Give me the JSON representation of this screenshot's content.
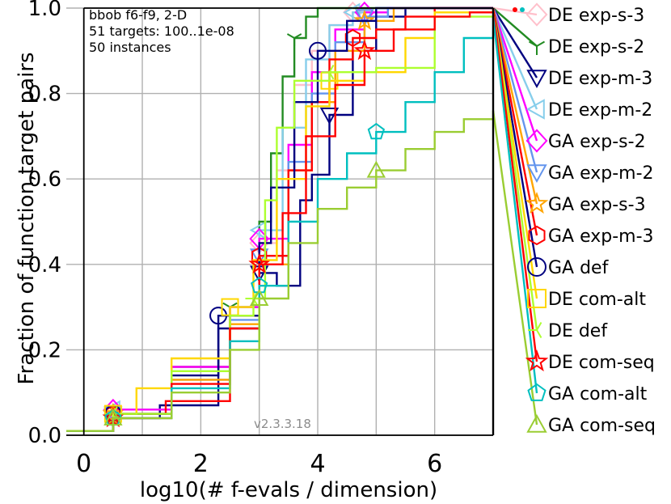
{
  "chart_data": {
    "type": "line",
    "title": "",
    "xlabel": "log10(# f-evals / dimension)",
    "ylabel": "Fraction of function,target pairs",
    "xlim": [
      -0.3,
      7.0
    ],
    "ylim": [
      0.0,
      1.0
    ],
    "xticks": [
      0,
      2,
      4,
      6
    ],
    "xtick_labels": [
      "0",
      "2",
      "4",
      "6"
    ],
    "yticks": [
      0.0,
      0.2,
      0.4,
      0.6,
      0.8,
      1.0
    ],
    "ytick_labels": [
      "0.0",
      "0.2",
      "0.4",
      "0.6",
      "0.8",
      "1.0"
    ],
    "grid": true,
    "annotations": [
      "bbob f6-f9, 2-D",
      "51 targets: 100..1e-08",
      "50 instances"
    ],
    "version": "v2.3.3.18",
    "legend_position": "right",
    "series": [
      {
        "name": "DE exp-s-3",
        "color": "#ffc0cb",
        "marker": "diamond",
        "x": [
          -0.3,
          0.5,
          1.5,
          2.5,
          3.0,
          3.3,
          3.6,
          3.9,
          4.2,
          4.6,
          5.0,
          5.5,
          6.0,
          7.0
        ],
        "y": [
          0.01,
          0.06,
          0.16,
          0.3,
          0.45,
          0.62,
          0.82,
          0.9,
          0.96,
          0.99,
          1.0,
          1.0,
          1.0,
          1.0
        ],
        "end_y": 0.99
      },
      {
        "name": "DE exp-s-2",
        "color": "#228b22",
        "marker": "tri_down",
        "x": [
          -0.3,
          0.5,
          1.5,
          2.5,
          3.0,
          3.2,
          3.4,
          3.6,
          3.8,
          4.0,
          7.0
        ],
        "y": [
          0.01,
          0.06,
          0.16,
          0.3,
          0.5,
          0.66,
          0.84,
          0.93,
          0.98,
          1.0,
          1.0
        ],
        "end_y": 0.91
      },
      {
        "name": "DE exp-m-3",
        "color": "#000080",
        "marker": "triangle_down",
        "x": [
          -0.3,
          0.5,
          1.3,
          2.3,
          3.0,
          3.3,
          3.7,
          3.9,
          4.2,
          4.6,
          5.0,
          5.5,
          7.0
        ],
        "y": [
          0.01,
          0.04,
          0.07,
          0.25,
          0.38,
          0.35,
          0.55,
          0.61,
          0.75,
          0.9,
          0.98,
          1.0,
          1.0
        ],
        "end_y": 0.83
      },
      {
        "name": "DE exp-m-2",
        "color": "#87ceeb",
        "marker": "triangle_left",
        "x": [
          -0.3,
          0.5,
          1.5,
          2.5,
          3.0,
          3.4,
          3.8,
          4.2,
          4.6,
          5.0,
          6.0,
          7.0
        ],
        "y": [
          0.01,
          0.06,
          0.15,
          0.3,
          0.48,
          0.72,
          0.88,
          0.96,
          0.99,
          1.0,
          1.0,
          1.0
        ],
        "end_y": 0.76
      },
      {
        "name": "GA exp-s-2",
        "color": "#ff00ff",
        "marker": "diamond",
        "x": [
          -0.3,
          0.5,
          1.5,
          2.5,
          3.0,
          3.5,
          3.9,
          4.3,
          4.8,
          5.2,
          6.0,
          7.0
        ],
        "y": [
          0.01,
          0.06,
          0.16,
          0.3,
          0.46,
          0.68,
          0.85,
          0.95,
          0.99,
          1.0,
          1.0,
          1.0
        ],
        "end_y": 0.69
      },
      {
        "name": "GA exp-m-2",
        "color": "#6495ed",
        "marker": "triangle_down",
        "x": [
          -0.3,
          0.5,
          1.5,
          2.5,
          3.0,
          3.5,
          3.9,
          4.3,
          4.8,
          5.2,
          6.0,
          7.0
        ],
        "y": [
          0.01,
          0.05,
          0.13,
          0.27,
          0.42,
          0.64,
          0.8,
          0.92,
          0.98,
          1.0,
          1.0,
          1.0
        ],
        "end_y": 0.61
      },
      {
        "name": "GA exp-s-3",
        "color": "#ffa500",
        "marker": "star",
        "x": [
          -0.3,
          0.5,
          1.5,
          2.5,
          3.0,
          3.5,
          3.9,
          4.3,
          4.8,
          5.3,
          6.0,
          7.0
        ],
        "y": [
          0.01,
          0.05,
          0.13,
          0.26,
          0.4,
          0.62,
          0.78,
          0.9,
          0.97,
          1.0,
          1.0,
          1.0
        ],
        "end_y": 0.54
      },
      {
        "name": "GA exp-m-3",
        "color": "#ff0000",
        "marker": "hexagon",
        "x": [
          -0.3,
          0.5,
          1.4,
          2.5,
          3.0,
          3.5,
          3.9,
          4.2,
          4.6,
          5.0,
          5.5,
          6.0,
          7.0
        ],
        "y": [
          0.01,
          0.05,
          0.08,
          0.28,
          0.42,
          0.62,
          0.78,
          0.88,
          0.93,
          0.95,
          0.98,
          1.0,
          1.0
        ],
        "end_y": 0.46
      },
      {
        "name": "GA def",
        "color": "#000080",
        "marker": "circle",
        "x": [
          -0.3,
          0.5,
          1.5,
          2.3,
          3.0,
          3.2,
          3.6,
          4.0,
          4.5,
          5.0,
          7.0
        ],
        "y": [
          0.01,
          0.05,
          0.14,
          0.28,
          0.45,
          0.58,
          0.78,
          0.9,
          0.97,
          1.0,
          1.0
        ],
        "end_y": 0.39
      },
      {
        "name": "DE com-alt",
        "color": "#ffd700",
        "marker": "square",
        "x": [
          -0.3,
          0.5,
          0.9,
          1.5,
          2.5,
          2.9,
          3.3,
          3.8,
          4.2,
          4.8,
          5.5,
          6.0,
          7.0
        ],
        "y": [
          0.01,
          0.05,
          0.11,
          0.18,
          0.3,
          0.41,
          0.6,
          0.77,
          0.83,
          0.85,
          0.93,
          0.99,
          1.0
        ],
        "end_y": 0.31
      },
      {
        "name": "DE def",
        "color": "#adff2f",
        "marker": "tri_left",
        "x": [
          -0.3,
          0.5,
          1.5,
          2.5,
          2.9,
          3.1,
          3.3,
          3.6,
          4.2,
          5.0,
          6.0,
          7.0
        ],
        "y": [
          0.01,
          0.05,
          0.15,
          0.28,
          0.32,
          0.55,
          0.72,
          0.83,
          0.85,
          0.86,
          0.98,
          1.0
        ],
        "end_y": 0.24
      },
      {
        "name": "DE com-seq",
        "color": "#ff0000",
        "marker": "star",
        "x": [
          -0.3,
          0.5,
          1.5,
          2.5,
          3.0,
          3.4,
          3.8,
          4.3,
          4.8,
          5.3,
          6.0,
          6.6,
          7.0
        ],
        "y": [
          0.01,
          0.04,
          0.12,
          0.25,
          0.4,
          0.52,
          0.7,
          0.82,
          0.9,
          0.95,
          0.98,
          0.99,
          1.0
        ],
        "end_y": 0.16
      },
      {
        "name": "GA com-alt",
        "color": "#00bfbf",
        "marker": "pentagon",
        "x": [
          -0.3,
          0.5,
          1.5,
          2.5,
          3.0,
          3.5,
          4.0,
          4.5,
          5.0,
          5.5,
          6.0,
          6.5,
          7.0
        ],
        "y": [
          0.01,
          0.04,
          0.11,
          0.22,
          0.35,
          0.5,
          0.6,
          0.66,
          0.71,
          0.78,
          0.85,
          0.93,
          0.98
        ],
        "end_y": 0.09
      },
      {
        "name": "GA com-seq",
        "color": "#9acd32",
        "marker": "triangle_up",
        "x": [
          -0.3,
          0.5,
          1.5,
          2.5,
          3.0,
          3.5,
          4.0,
          4.5,
          5.0,
          5.5,
          6.0,
          6.5,
          7.0
        ],
        "y": [
          0.01,
          0.04,
          0.1,
          0.2,
          0.32,
          0.45,
          0.53,
          0.58,
          0.62,
          0.67,
          0.71,
          0.74,
          0.76
        ],
        "end_y": 0.02
      }
    ]
  }
}
